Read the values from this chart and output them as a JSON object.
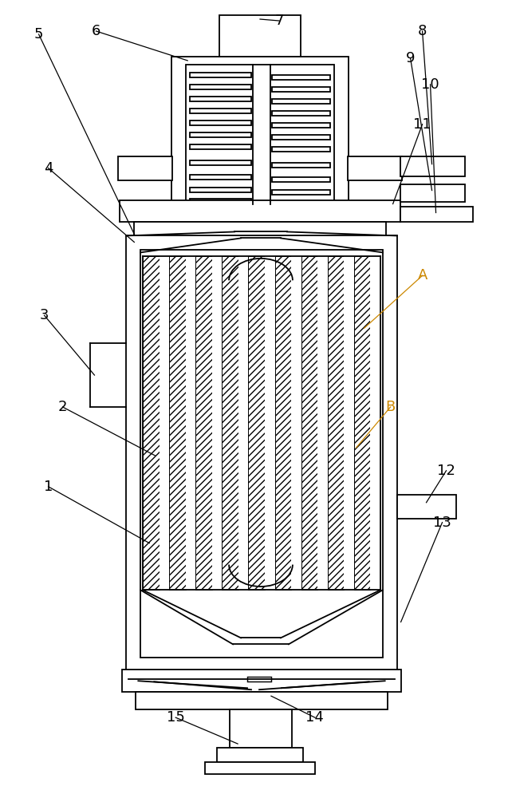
{
  "bg_color": "#ffffff",
  "line_color": "#000000",
  "label_color_A": "#cc8800",
  "label_color_B": "#cc8800",
  "fig_width": 6.52,
  "fig_height": 10.0,
  "lw": 1.3
}
